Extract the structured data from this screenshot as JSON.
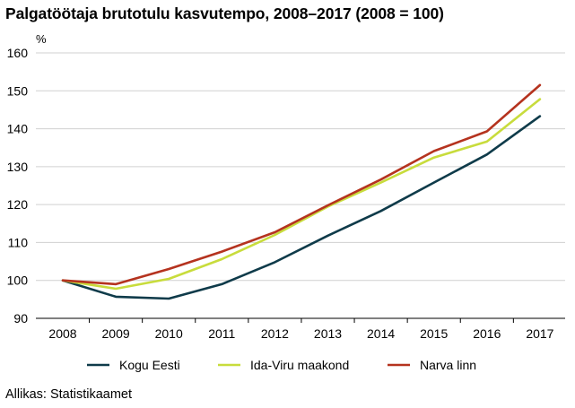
{
  "title": "Palgatöötaja brutotulu kasvutempo, 2008–2017 (2008 = 100)",
  "source": "Allikas: Statistikaamet",
  "chart_data": {
    "type": "line",
    "title": "Palgatöötaja brutotulu kasvutempo, 2008–2017 (2008 = 100)",
    "ylabel": "%",
    "xlabel": "",
    "x": [
      "2008",
      "2009",
      "2010",
      "2011",
      "2012",
      "2013",
      "2014",
      "2015",
      "2016",
      "2017"
    ],
    "ylim": [
      90,
      160
    ],
    "yticks": [
      90,
      100,
      110,
      120,
      130,
      140,
      150,
      160
    ],
    "grid": "horizontal",
    "legend": "bottom",
    "series": [
      {
        "name": "Kogu Eesti",
        "color": "#0f3b4a",
        "values": [
          100,
          95.7,
          95.2,
          99.0,
          104.8,
          111.8,
          118.3,
          125.8,
          133.2,
          143.3
        ]
      },
      {
        "name": "Ida-Viru maakond",
        "color": "#c8dc3c",
        "values": [
          100,
          97.8,
          100.4,
          105.6,
          112.0,
          119.5,
          125.8,
          132.4,
          136.6,
          147.8
        ]
      },
      {
        "name": "Narva linn",
        "color": "#b5331f",
        "values": [
          100,
          99.0,
          103.0,
          107.6,
          112.7,
          119.8,
          126.6,
          134.1,
          139.3,
          151.5
        ]
      }
    ]
  }
}
